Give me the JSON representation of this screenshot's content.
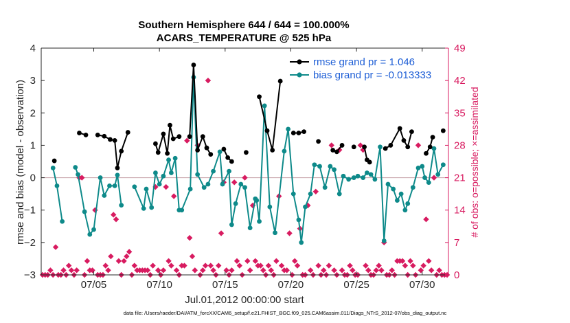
{
  "chart_data": {
    "type": "line",
    "title_line1": "Southern Hemisphere 644 / 644 = 100.000%",
    "title_line2": "ACARS_TEMPERATURE @ 525 hPa",
    "xlabel": "Jul.01,2012 00:00:00 start",
    "ylabel": "rmse and bias (model - observation)",
    "y2label": "# of obs: o=possible; ×=assimilated",
    "footnote": "data file: /Users/raeder/DAI/ATM_forcXX/CAM6_setup/f.e21.FHIST_BGC.f09_025.CAM6assim.011/Diags_NTrS_2012-07/obs_diag_output.nc",
    "xlim": [
      1,
      32
    ],
    "ylim": [
      -3,
      4
    ],
    "y2lim": [
      0,
      49
    ],
    "x_ticks": [
      5,
      10,
      15,
      20,
      25,
      30
    ],
    "x_tick_labels": [
      "07/05",
      "07/10",
      "07/15",
      "07/20",
      "07/25",
      "07/30"
    ],
    "y_ticks": [
      -3,
      -2,
      -1,
      0,
      1,
      2,
      3,
      4
    ],
    "y_tick_labels": [
      "−3",
      "−2",
      "−1",
      "0",
      "1",
      "2",
      "3",
      "4"
    ],
    "y2_ticks": [
      0,
      7,
      14,
      21,
      28,
      35,
      42,
      49
    ],
    "y2_tick_labels": [
      "0",
      "7",
      "14",
      "21",
      "28",
      "35",
      "42",
      "49"
    ],
    "legend_position": "top-right",
    "grid": false,
    "zero_line": true,
    "series": [
      {
        "name": "rmse grand pr = 1.046",
        "color": "#000000",
        "marker": "circle",
        "points": [
          [
            2.0,
            0.52
          ],
          [
            3.9,
            1.38
          ],
          [
            4.4,
            1.32
          ],
          [
            5.3,
            1.32
          ],
          [
            5.8,
            1.28
          ],
          [
            6.25,
            1.18
          ],
          [
            6.6,
            1.15
          ],
          [
            6.8,
            0.3
          ],
          [
            7.1,
            0.82
          ],
          [
            7.6,
            1.4
          ],
          [
            9.7,
            1.05
          ],
          [
            9.9,
            0.78
          ],
          [
            10.3,
            1.35
          ],
          [
            10.6,
            0.75
          ],
          [
            10.8,
            1.62
          ],
          [
            11.05,
            1.2
          ],
          [
            11.5,
            1.27
          ],
          [
            12.3,
            1.27
          ],
          [
            12.6,
            3.48
          ],
          [
            12.9,
            0.85
          ],
          [
            13.3,
            1.27
          ],
          [
            13.6,
            0.92
          ],
          [
            13.9,
            0.72
          ],
          [
            14.9,
            0.88
          ],
          [
            15.2,
            0.62
          ],
          [
            15.5,
            0.5
          ],
          [
            16.6,
            0.78
          ],
          [
            17.6,
            2.5
          ],
          [
            18.2,
            1.45
          ],
          [
            18.6,
            0.85
          ],
          [
            19.2,
            2.98
          ],
          [
            20.2,
            1.38
          ],
          [
            20.6,
            1.38
          ],
          [
            21.0,
            1.42
          ],
          [
            22.1,
            1.12
          ],
          [
            23.2,
            0.85
          ],
          [
            23.5,
            0.8
          ],
          [
            23.9,
            1.0
          ],
          [
            24.8,
            0.95
          ],
          [
            25.6,
            0.95
          ],
          [
            25.8,
            0.55
          ],
          [
            26.0,
            0.48
          ],
          [
            27.2,
            0.9
          ],
          [
            27.6,
            1.0
          ],
          [
            28.3,
            1.52
          ],
          [
            28.6,
            1.15
          ],
          [
            28.9,
            0.95
          ],
          [
            29.2,
            1.42
          ],
          [
            30.3,
            0.75
          ],
          [
            30.6,
            0.95
          ],
          [
            30.8,
            1.25
          ],
          [
            31.6,
            1.45
          ]
        ]
      },
      {
        "name": "bias grand pr = -0.013333",
        "color": "#0e8a8a",
        "marker": "circle",
        "points": [
          [
            1.9,
            0.3
          ],
          [
            2.2,
            -0.25
          ],
          [
            2.6,
            -1.35
          ],
          [
            3.6,
            0.32
          ],
          [
            3.8,
            0.1
          ],
          [
            4.3,
            -1.05
          ],
          [
            4.7,
            -1.75
          ],
          [
            5.0,
            -1.6
          ],
          [
            5.5,
            0.0
          ],
          [
            5.8,
            -0.55
          ],
          [
            6.2,
            -0.25
          ],
          [
            6.6,
            -0.25
          ],
          [
            6.8,
            0.08
          ],
          [
            7.1,
            -0.85
          ],
          [
            8.1,
            -0.28
          ],
          [
            8.8,
            -0.95
          ],
          [
            9.0,
            -0.35
          ],
          [
            9.4,
            -0.92
          ],
          [
            9.7,
            0.15
          ],
          [
            10.0,
            -0.2
          ],
          [
            10.3,
            0.05
          ],
          [
            10.7,
            0.55
          ],
          [
            10.9,
            0.15
          ],
          [
            11.2,
            0.6
          ],
          [
            11.5,
            -1.0
          ],
          [
            11.7,
            -1.0
          ],
          [
            12.35,
            -0.35
          ],
          [
            12.6,
            3.1
          ],
          [
            12.9,
            0.1
          ],
          [
            13.4,
            -0.3
          ],
          [
            13.7,
            -0.2
          ],
          [
            14.1,
            0.2
          ],
          [
            14.6,
            0.8
          ],
          [
            14.8,
            -0.2
          ],
          [
            15.3,
            0.2
          ],
          [
            15.5,
            -1.45
          ],
          [
            15.8,
            -0.8
          ],
          [
            16.2,
            -0.2
          ],
          [
            16.5,
            -0.3
          ],
          [
            16.9,
            -1.55
          ],
          [
            17.3,
            -0.65
          ],
          [
            17.4,
            -0.7
          ],
          [
            17.6,
            -1.35
          ],
          [
            18.0,
            2.22
          ],
          [
            18.4,
            -0.9
          ],
          [
            18.8,
            -1.7
          ],
          [
            19.5,
            0.82
          ],
          [
            19.8,
            1.5
          ],
          [
            20.2,
            -0.5
          ],
          [
            20.6,
            -1.3
          ],
          [
            20.8,
            -2.0
          ],
          [
            21.1,
            -0.9
          ],
          [
            21.5,
            -0.5
          ],
          [
            21.8,
            0.4
          ],
          [
            22.2,
            0.35
          ],
          [
            22.6,
            -0.3
          ],
          [
            23.0,
            0.35
          ],
          [
            23.3,
            0.25
          ],
          [
            23.7,
            -0.5
          ],
          [
            24.0,
            0.05
          ],
          [
            24.4,
            -0.05
          ],
          [
            24.8,
            0.0
          ],
          [
            25.1,
            0.05
          ],
          [
            25.5,
            0.0
          ],
          [
            25.8,
            0.15
          ],
          [
            26.1,
            0.1
          ],
          [
            26.4,
            -0.05
          ],
          [
            26.8,
            0.95
          ],
          [
            27.1,
            -1.95
          ],
          [
            27.4,
            -0.2
          ],
          [
            27.8,
            -0.35
          ],
          [
            28.1,
            -0.7
          ],
          [
            28.4,
            -0.5
          ],
          [
            28.7,
            -1.0
          ],
          [
            28.9,
            -0.8
          ],
          [
            29.3,
            -0.3
          ],
          [
            29.7,
            0.3
          ],
          [
            30.0,
            0.35
          ],
          [
            30.2,
            0.0
          ],
          [
            30.5,
            -0.15
          ],
          [
            30.9,
            0.9
          ],
          [
            31.2,
            0.1
          ],
          [
            31.6,
            0.4
          ]
        ]
      }
    ],
    "obs_counts": {
      "name": "# of obs",
      "color": "#d81b60",
      "marker": "x-cross",
      "points": [
        [
          1.1,
          0
        ],
        [
          1.3,
          0
        ],
        [
          1.5,
          0
        ],
        [
          1.7,
          1
        ],
        [
          1.9,
          0
        ],
        [
          2.1,
          6
        ],
        [
          2.3,
          0
        ],
        [
          2.5,
          0
        ],
        [
          2.7,
          1
        ],
        [
          2.9,
          0
        ],
        [
          3.1,
          2
        ],
        [
          3.3,
          1
        ],
        [
          3.5,
          0
        ],
        [
          3.7,
          1
        ],
        [
          3.9,
          21
        ],
        [
          4.1,
          21
        ],
        [
          4.3,
          0
        ],
        [
          4.5,
          3
        ],
        [
          4.7,
          1
        ],
        [
          4.9,
          1
        ],
        [
          5.1,
          14
        ],
        [
          5.3,
          0
        ],
        [
          5.5,
          0
        ],
        [
          5.7,
          0
        ],
        [
          5.9,
          2
        ],
        [
          6.1,
          1
        ],
        [
          6.3,
          4
        ],
        [
          6.5,
          13
        ],
        [
          6.7,
          12
        ],
        [
          6.9,
          3
        ],
        [
          7.1,
          0
        ],
        [
          7.3,
          3
        ],
        [
          7.5,
          4
        ],
        [
          7.7,
          5
        ],
        [
          7.9,
          0
        ],
        [
          8.1,
          2
        ],
        [
          8.3,
          1
        ],
        [
          8.5,
          1
        ],
        [
          8.7,
          1
        ],
        [
          8.9,
          1
        ],
        [
          9.1,
          1
        ],
        [
          9.3,
          0
        ],
        [
          9.5,
          2
        ],
        [
          9.7,
          19
        ],
        [
          9.9,
          1
        ],
        [
          10.1,
          0
        ],
        [
          10.3,
          1
        ],
        [
          10.5,
          19
        ],
        [
          10.7,
          3
        ],
        [
          10.9,
          2
        ],
        [
          11.1,
          17
        ],
        [
          11.3,
          1
        ],
        [
          11.5,
          0
        ],
        [
          11.7,
          2
        ],
        [
          11.9,
          2
        ],
        [
          12.1,
          29
        ],
        [
          12.3,
          8
        ],
        [
          12.5,
          4
        ],
        [
          12.7,
          1
        ],
        [
          12.9,
          28
        ],
        [
          13.1,
          0
        ],
        [
          13.3,
          1
        ],
        [
          13.5,
          2
        ],
        [
          13.7,
          42
        ],
        [
          13.9,
          2
        ],
        [
          14.1,
          1
        ],
        [
          14.3,
          0
        ],
        [
          14.5,
          2
        ],
        [
          14.7,
          9
        ],
        [
          14.9,
          20
        ],
        [
          15.1,
          1
        ],
        [
          15.3,
          0
        ],
        [
          15.5,
          1
        ],
        [
          15.7,
          20
        ],
        [
          15.9,
          3
        ],
        [
          16.1,
          2
        ],
        [
          16.3,
          0
        ],
        [
          16.5,
          21
        ],
        [
          16.7,
          3
        ],
        [
          16.9,
          1
        ],
        [
          17.1,
          15
        ],
        [
          17.3,
          3
        ],
        [
          17.5,
          2
        ],
        [
          17.7,
          2
        ],
        [
          17.9,
          1
        ],
        [
          18.1,
          0
        ],
        [
          18.3,
          2
        ],
        [
          18.5,
          1
        ],
        [
          18.7,
          0
        ],
        [
          18.9,
          3
        ],
        [
          19.1,
          17
        ],
        [
          19.3,
          2
        ],
        [
          19.5,
          1
        ],
        [
          19.7,
          1
        ],
        [
          19.9,
          9
        ],
        [
          20.1,
          0
        ],
        [
          20.3,
          3
        ],
        [
          20.5,
          2
        ],
        [
          20.7,
          10
        ],
        [
          20.9,
          0
        ],
        [
          21.1,
          0
        ],
        [
          21.3,
          15
        ],
        [
          21.5,
          1
        ],
        [
          21.7,
          0
        ],
        [
          21.9,
          18
        ],
        [
          22.1,
          2
        ],
        [
          22.3,
          0
        ],
        [
          22.5,
          1
        ],
        [
          22.7,
          0
        ],
        [
          22.9,
          2
        ],
        [
          23.1,
          28
        ],
        [
          23.3,
          1
        ],
        [
          23.5,
          0
        ],
        [
          23.7,
          27
        ],
        [
          23.9,
          1
        ],
        [
          24.1,
          0
        ],
        [
          24.3,
          0
        ],
        [
          24.5,
          2
        ],
        [
          24.7,
          1
        ],
        [
          24.9,
          0
        ],
        [
          25.1,
          0
        ],
        [
          25.3,
          28
        ],
        [
          25.5,
          27
        ],
        [
          25.7,
          2
        ],
        [
          25.9,
          1
        ],
        [
          26.1,
          0
        ],
        [
          26.3,
          0
        ],
        [
          26.5,
          1
        ],
        [
          26.7,
          2
        ],
        [
          26.9,
          1
        ],
        [
          27.1,
          7
        ],
        [
          27.3,
          0
        ],
        [
          27.5,
          0
        ],
        [
          27.7,
          1
        ],
        [
          27.9,
          0
        ],
        [
          28.1,
          3
        ],
        [
          28.3,
          3
        ],
        [
          28.5,
          3
        ],
        [
          28.7,
          2
        ],
        [
          28.9,
          0
        ],
        [
          29.1,
          3
        ],
        [
          29.3,
          2
        ],
        [
          29.5,
          0
        ],
        [
          29.7,
          28
        ],
        [
          29.9,
          1
        ],
        [
          30.1,
          2
        ],
        [
          30.3,
          12
        ],
        [
          30.5,
          3
        ],
        [
          30.7,
          1
        ],
        [
          30.9,
          21
        ],
        [
          31.1,
          0
        ],
        [
          31.3,
          1
        ],
        [
          31.5,
          0
        ],
        [
          31.7,
          0
        ],
        [
          31.9,
          0
        ]
      ]
    }
  }
}
